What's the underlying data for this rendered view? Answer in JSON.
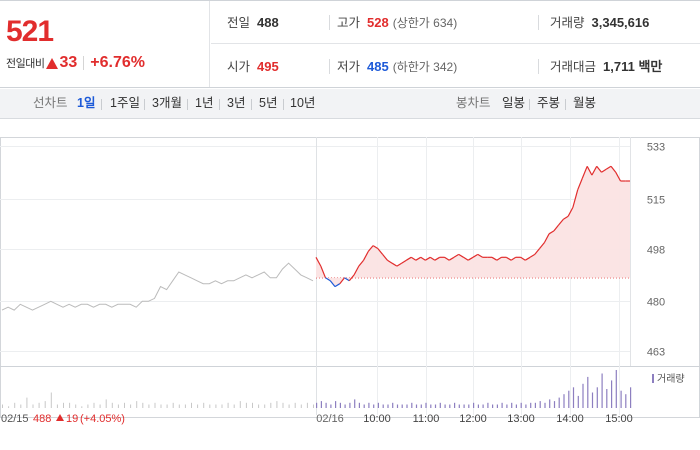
{
  "quote": {
    "price": "521",
    "change_label": "전일대비",
    "change_value": "33",
    "change_percent": "+6.76%",
    "prev_close_label": "전일",
    "prev_close": "488",
    "high_label": "고가",
    "high": "528",
    "upper_limit": "(상한가 634)",
    "volume_label": "거래량",
    "volume": "3,345,616",
    "open_label": "시가",
    "open": "495",
    "low_label": "저가",
    "low": "485",
    "lower_limit": "(하한가 342)",
    "amount_label": "거래대금",
    "amount": "1,711 백만",
    "colors": {
      "up": "#e12d2d",
      "down": "#1d5ad8"
    }
  },
  "toolbar": {
    "line_label": "선차트",
    "line_periods": [
      "1일",
      "1주일",
      "3개월",
      "1년",
      "3년",
      "5년",
      "10년"
    ],
    "active_period": "1일",
    "candle_label": "봉차트",
    "candle_periods": [
      "일봉",
      "주봉",
      "월봉"
    ]
  },
  "footer": {
    "prev_date": "02/15",
    "prev_close": "488",
    "prev_change": "19",
    "prev_change_percent": "(+4.05%)"
  },
  "chart_data": {
    "type": "line",
    "y_ticks": [
      533,
      515,
      498,
      480,
      463
    ],
    "ylim": [
      460,
      536
    ],
    "baseline": 488,
    "legend": "거래량",
    "date_labels": [
      "02/16"
    ],
    "x_labels": [
      "10:00",
      "11:00",
      "12:00",
      "13:00",
      "14:00",
      "15:00"
    ],
    "series": [
      {
        "role": "previous-day",
        "color": "#bbbbbb",
        "values": [
          477,
          478,
          477,
          479,
          478,
          477,
          478,
          479,
          480,
          479,
          478,
          479,
          478,
          479,
          479,
          478,
          479,
          479,
          478,
          479,
          479,
          479,
          478,
          480,
          480,
          481,
          485,
          484,
          487,
          490,
          489,
          488,
          487,
          486,
          486,
          487,
          486,
          487,
          487,
          488,
          489,
          488,
          489,
          490,
          488,
          488,
          491,
          493,
          491,
          489,
          488,
          487
        ]
      },
      {
        "role": "today",
        "color": "#e12d2d",
        "values": [
          495,
          492,
          488,
          487,
          485,
          486,
          488,
          487,
          489,
          492,
          494,
          497,
          499,
          498,
          496,
          494,
          493,
          492,
          493,
          494,
          495,
          494,
          495,
          494,
          495,
          494,
          495,
          495,
          494,
          495,
          496,
          495,
          494,
          495,
          496,
          495,
          495,
          495,
          494,
          495,
          495,
          494,
          495,
          495,
          494,
          495,
          496,
          498,
          500,
          503,
          504,
          506,
          508,
          509,
          512,
          518,
          522,
          526,
          523,
          526,
          524,
          525,
          526,
          524,
          521,
          521,
          521
        ]
      }
    ],
    "volume": {
      "previous_day": [
        2,
        1,
        3,
        2,
        6,
        2,
        3,
        4,
        9,
        2,
        3,
        3,
        2,
        1,
        2,
        3,
        2,
        5,
        3,
        2,
        3,
        2,
        4,
        3,
        2,
        3,
        2,
        2,
        3,
        2,
        2,
        3,
        2,
        3,
        2,
        2,
        2,
        3,
        2,
        4,
        3,
        3,
        2,
        2,
        3,
        4,
        3,
        2,
        3,
        2,
        3,
        2
      ],
      "today": [
        3,
        4,
        3,
        2,
        4,
        3,
        2,
        3,
        5,
        3,
        2,
        3,
        2,
        3,
        2,
        2,
        3,
        2,
        2,
        2,
        3,
        2,
        2,
        3,
        2,
        2,
        3,
        2,
        2,
        3,
        2,
        2,
        2,
        3,
        2,
        2,
        3,
        2,
        2,
        3,
        2,
        3,
        2,
        3,
        2,
        3,
        3,
        4,
        3,
        5,
        4,
        6,
        8,
        10,
        12,
        7,
        14,
        18,
        9,
        12,
        20,
        11,
        16,
        22,
        10,
        8,
        12
      ]
    }
  }
}
